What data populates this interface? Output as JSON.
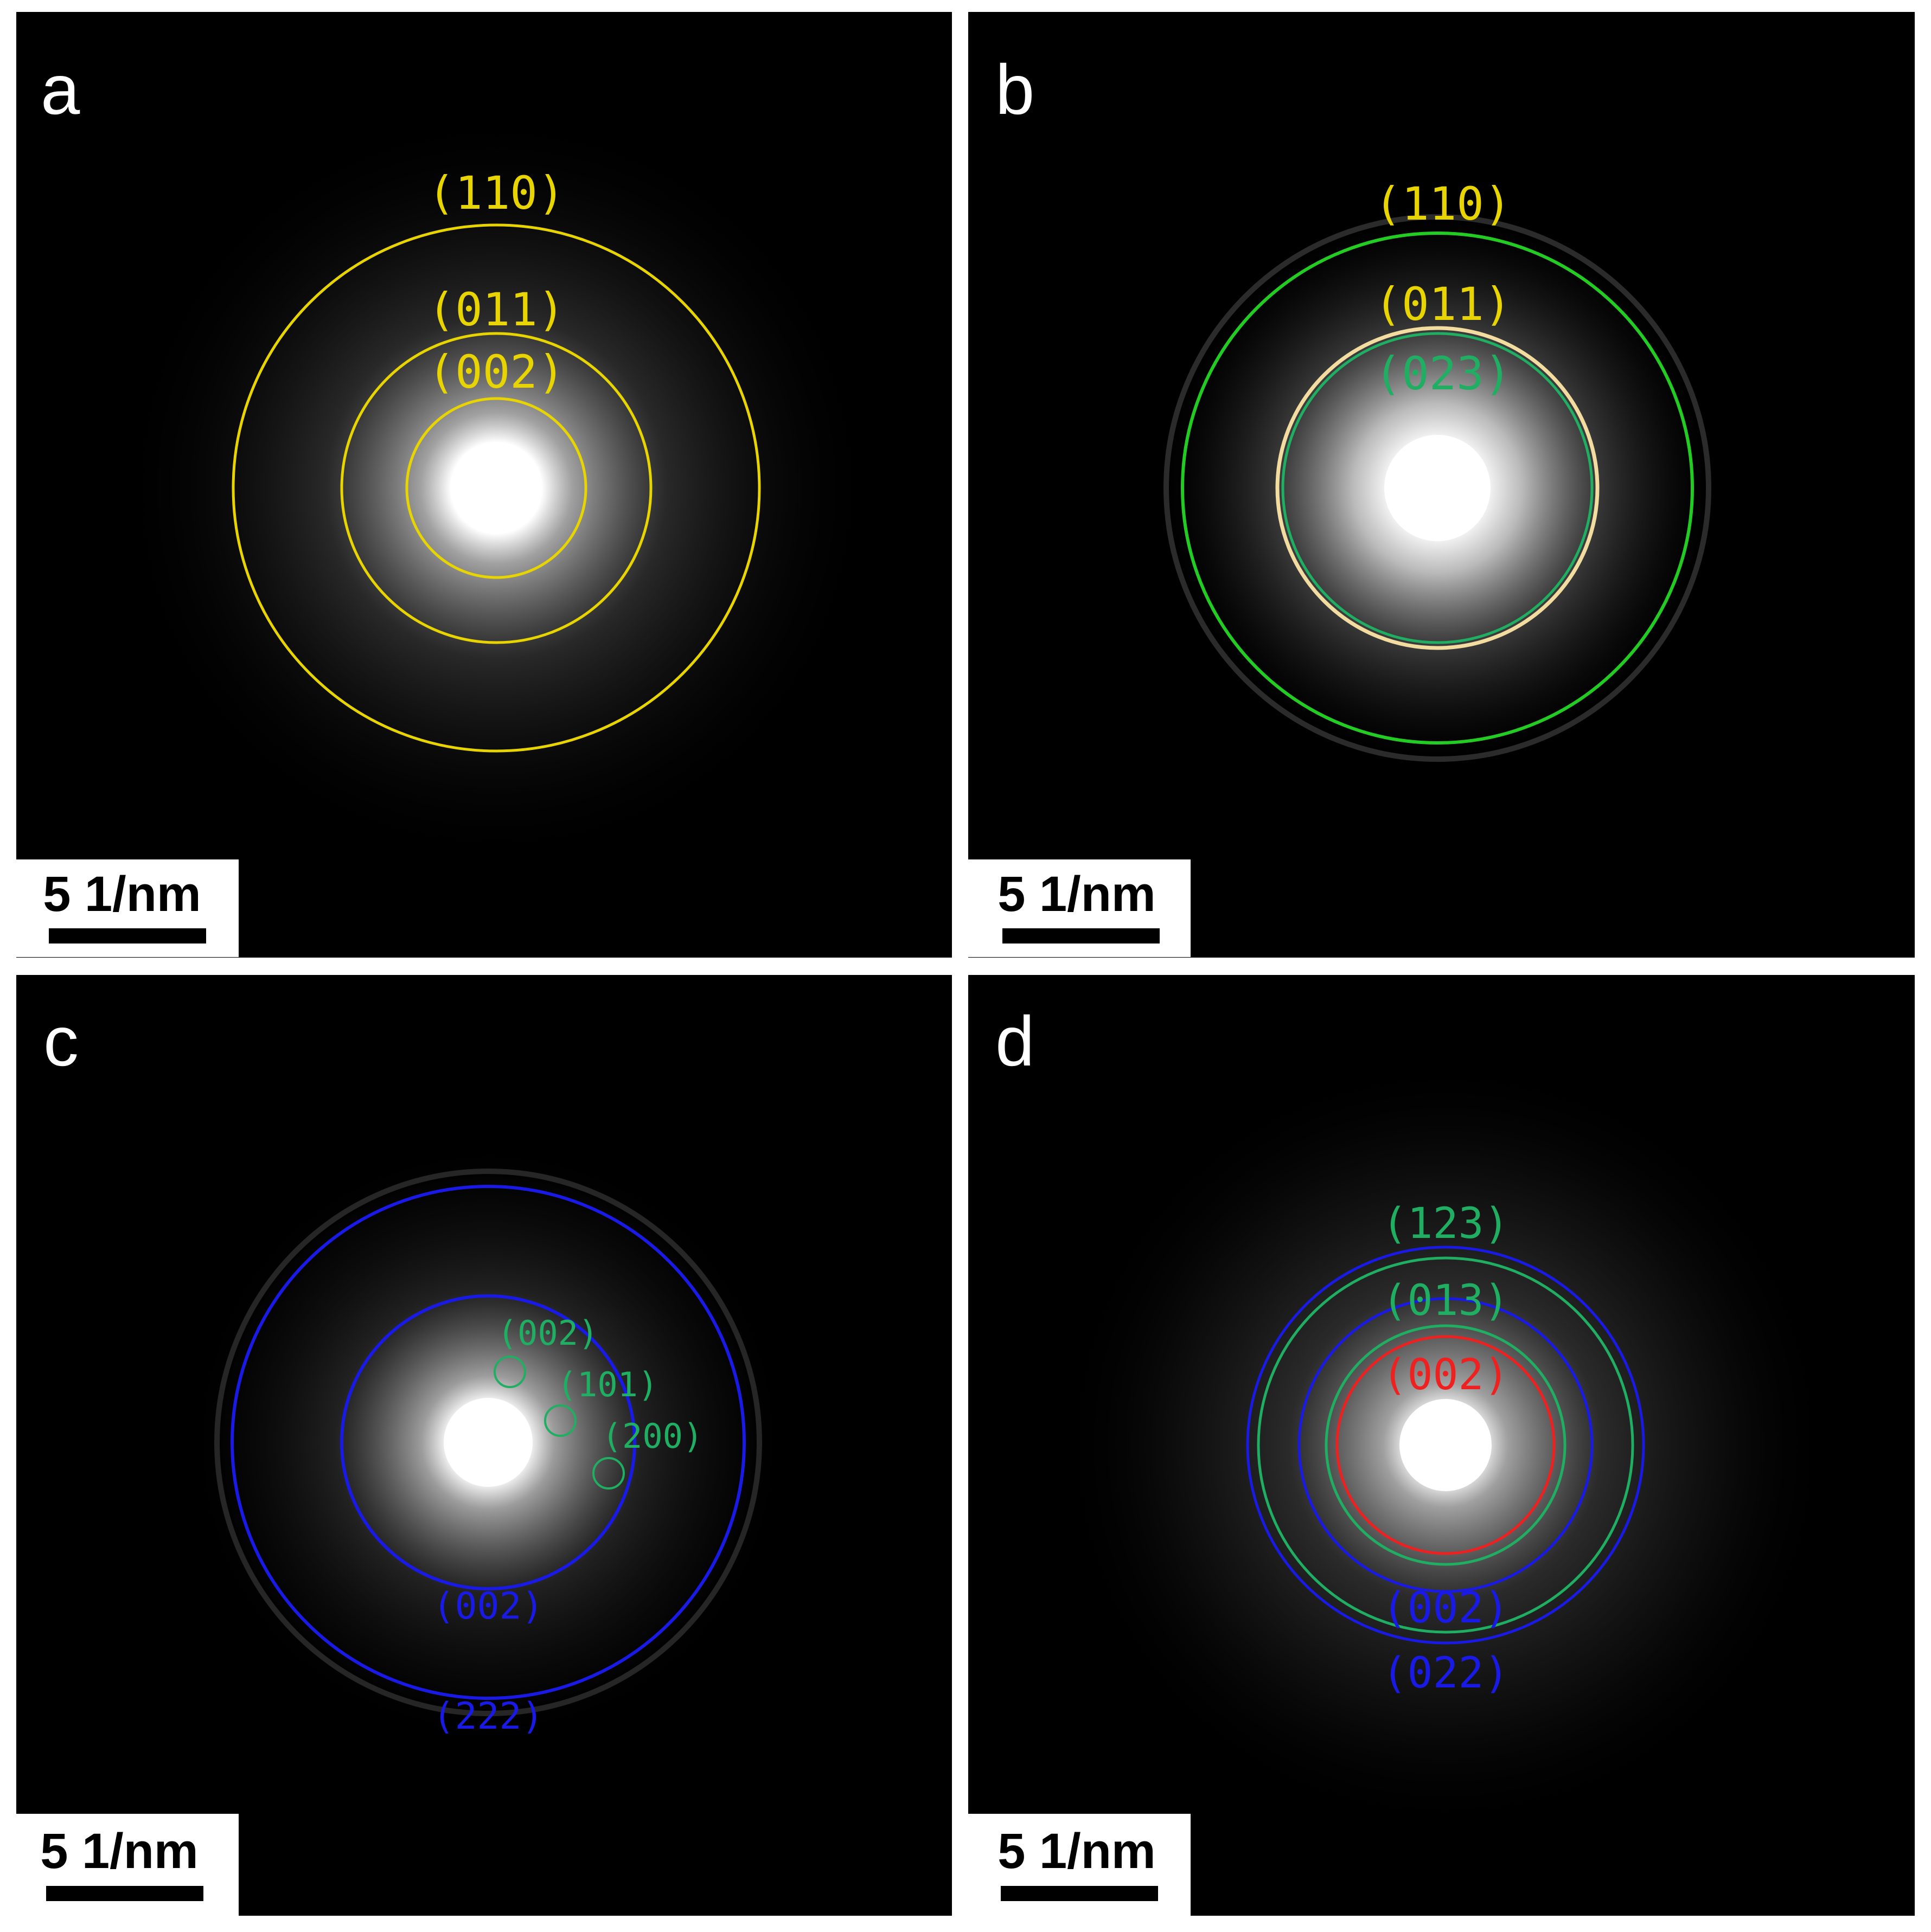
{
  "colors": {
    "yellow": "#e8d400",
    "green_bright": "#22cc22",
    "green_label": "#1fae62",
    "pale": "#f2dca0",
    "blue": "#1a1ae6",
    "red": "#ee2020",
    "background": "#000000"
  },
  "panels": [
    {
      "letter": "a",
      "scale_bar_label": "5 1/nm",
      "ring_labels": [
        "(110)",
        "(011)",
        "(002)"
      ]
    },
    {
      "letter": "b",
      "scale_bar_label": "5 1/nm",
      "ring_labels": [
        "(110)",
        "(011)",
        "(023)"
      ]
    },
    {
      "letter": "c",
      "scale_bar_label": "5 1/nm",
      "ring_labels": [
        "(002)",
        "(101)",
        "(200)",
        "(002)",
        "(222)"
      ]
    },
    {
      "letter": "d",
      "scale_bar_label": "5 1/nm",
      "ring_labels": [
        "(123)",
        "(013)",
        "(002)",
        "(002)",
        "(022)"
      ]
    }
  ]
}
